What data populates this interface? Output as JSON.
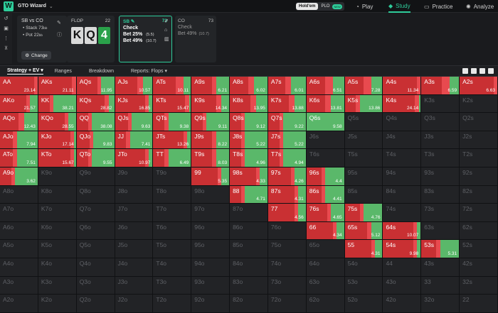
{
  "app": {
    "name": "GTO Wizard"
  },
  "game_toggle": {
    "holdem": "Hold'em",
    "plo": "PLO",
    "new_badge": "NEW"
  },
  "nav": [
    {
      "label": "Play",
      "icon": "play-icon"
    },
    {
      "label": "Study",
      "icon": "study-icon"
    },
    {
      "label": "Practice",
      "icon": "practice-icon"
    },
    {
      "label": "Analyze",
      "icon": "analyze-icon"
    }
  ],
  "spot": {
    "title": "SB vs CO",
    "stack": "• Stack 73",
    "stack_unit": "bb",
    "pot": "• Pot 22",
    "pot_unit": "bb",
    "change": "Change"
  },
  "flop": {
    "label": "FLOP",
    "pot": "22",
    "cards": [
      "K",
      "Q",
      "4"
    ]
  },
  "sb": {
    "label": "SB",
    "pot": "73",
    "actions": [
      {
        "name": "Check",
        "size": ""
      },
      {
        "name": "Bet 25%",
        "size": "(5.5)"
      },
      {
        "name": "Bet 49%",
        "size": "(10.7)"
      }
    ]
  },
  "co": {
    "label": "CO",
    "pot": "73",
    "actions": [
      {
        "name": "Check",
        "size": ""
      },
      {
        "name": "Bet 49%",
        "size": "(10.7)"
      }
    ]
  },
  "tabs": [
    "Strategy + EV",
    "Ranges",
    "Breakdown",
    "Reports: Flops"
  ],
  "colors": {
    "bet_big": "#c93033",
    "bet_small": "#e84a4f",
    "check": "#5ab86a"
  },
  "cells": [
    [
      "AA",
      "23.14",
      0.9,
      0.1,
      0.0
    ],
    [
      "AKs",
      "21.11",
      0.9,
      0.1,
      0.0
    ],
    [
      "AQs",
      "11.95",
      0.55,
      0.1,
      0.35
    ],
    [
      "AJs",
      "10.57",
      0.6,
      0.15,
      0.25
    ],
    [
      "ATs",
      "10.11",
      0.6,
      0.2,
      0.2
    ],
    [
      "A9s",
      "6.21",
      0.55,
      0.1,
      0.35
    ],
    [
      "A8s",
      "6.02",
      0.5,
      0.15,
      0.35
    ],
    [
      "A7s",
      "6.01",
      0.45,
      0.15,
      0.4
    ],
    [
      "A6s",
      "6.51",
      0.5,
      0.2,
      0.3
    ],
    [
      "A5s",
      "7.28",
      0.5,
      0.2,
      0.3
    ],
    [
      "A4s",
      "11.34",
      0.9,
      0.1,
      0.0
    ],
    [
      "A3s",
      "6.59",
      0.55,
      0.2,
      0.25
    ],
    [
      "A2s",
      "6.63",
      0.9,
      0.1,
      0.0
    ],
    [
      "AKo",
      "21.57",
      0.7,
      0.1,
      0.2
    ],
    [
      "KK",
      "38.21",
      0.3,
      0.1,
      0.6
    ],
    [
      "KQs",
      "28.82",
      0.75,
      0.1,
      0.15
    ],
    [
      "KJs",
      "16.85",
      0.8,
      0.1,
      0.1
    ],
    [
      "KTs",
      "15.47",
      0.85,
      0.1,
      0.05
    ],
    [
      "K9s",
      "14.34",
      0.65,
      0.15,
      0.2
    ],
    [
      "K8s",
      "13.95",
      0.55,
      0.15,
      0.3
    ],
    [
      "K7s",
      "13.88",
      0.55,
      0.15,
      0.3
    ],
    [
      "K6s",
      "13.81",
      0.5,
      0.15,
      0.35
    ],
    [
      "K5s",
      "13.86",
      0.3,
      0.1,
      0.6
    ],
    [
      "K4s",
      "24.14",
      0.85,
      0.1,
      0.05
    ],
    [
      "K3s",
      "",
      0,
      0,
      0
    ],
    [
      "K2s",
      "",
      0,
      0,
      0
    ],
    [
      "AQo",
      "12.43",
      0.5,
      0.15,
      0.35
    ],
    [
      "KQo",
      "28.55",
      0.7,
      0.1,
      0.2
    ],
    [
      "QQ",
      "38.08",
      0.3,
      0.1,
      0.6
    ],
    [
      "QJs",
      "9.63",
      0.35,
      0.1,
      0.55
    ],
    [
      "QTs",
      "9.38",
      0.3,
      0.1,
      0.6
    ],
    [
      "Q9s",
      "9.11",
      0.3,
      0.1,
      0.6
    ],
    [
      "Q8s",
      "9.12",
      0.3,
      0.1,
      0.6
    ],
    [
      "Q7s",
      "9.22",
      0.3,
      0.1,
      0.6
    ],
    [
      "Q6s",
      "9.58",
      0.0,
      0.0,
      1.0
    ],
    [
      "Q5s",
      "",
      0,
      0,
      0
    ],
    [
      "Q4s",
      "",
      0,
      0,
      0
    ],
    [
      "Q3s",
      "",
      0,
      0,
      0
    ],
    [
      "Q2s",
      "",
      0,
      0,
      0
    ],
    [
      "AJo",
      "7.94",
      0.35,
      0.1,
      0.55
    ],
    [
      "KJo",
      "17.14",
      0.85,
      0.1,
      0.05
    ],
    [
      "QJo",
      "9.83",
      0.35,
      0.1,
      0.55
    ],
    [
      "JJ",
      "7.41",
      0.3,
      0.1,
      0.6
    ],
    [
      "JTs",
      "13.26",
      0.8,
      0.1,
      0.1
    ],
    [
      "J9s",
      "8.22",
      0.55,
      0.1,
      0.35
    ],
    [
      "J8s",
      "5.22",
      0.3,
      0.1,
      0.6
    ],
    [
      "J7s",
      "5.22",
      0.3,
      0.1,
      0.6
    ],
    [
      "J6s",
      "",
      0,
      0,
      0
    ],
    [
      "J5s",
      "",
      0,
      0,
      0
    ],
    [
      "J4s",
      "",
      0,
      0,
      0
    ],
    [
      "J3s",
      "",
      0,
      0,
      0
    ],
    [
      "J2s",
      "",
      0,
      0,
      0
    ],
    [
      "ATo",
      "7.51",
      0.35,
      0.1,
      0.55
    ],
    [
      "KTo",
      "15.67",
      0.85,
      0.1,
      0.05
    ],
    [
      "QTo",
      "9.55",
      0.3,
      0.1,
      0.6
    ],
    [
      "JTo",
      "10.97",
      0.8,
      0.1,
      0.1
    ],
    [
      "TT",
      "6.49",
      0.3,
      0.1,
      0.6
    ],
    [
      "T9s",
      "8.03",
      0.55,
      0.1,
      0.35
    ],
    [
      "T8s",
      "4.96",
      0.3,
      0.1,
      0.6
    ],
    [
      "T7s",
      "4.94",
      0.3,
      0.1,
      0.6
    ],
    [
      "T6s",
      "",
      0,
      0,
      0
    ],
    [
      "T5s",
      "",
      0,
      0,
      0
    ],
    [
      "T4s",
      "",
      0,
      0,
      0
    ],
    [
      "T3s",
      "",
      0,
      0,
      0
    ],
    [
      "T2s",
      "",
      0,
      0,
      0
    ],
    [
      "A9o",
      "3.62",
      0.3,
      0.1,
      0.6
    ],
    [
      "K9o",
      "",
      0,
      0,
      0
    ],
    [
      "Q9o",
      "",
      0,
      0,
      0
    ],
    [
      "J9o",
      "",
      0,
      0,
      0
    ],
    [
      "T9o",
      "",
      0,
      0,
      0
    ],
    [
      "99",
      "5.35",
      0.7,
      0.1,
      0.2
    ],
    [
      "98s",
      "4.33",
      0.7,
      0.1,
      0.2
    ],
    [
      "97s",
      "4.26",
      0.6,
      0.1,
      0.3
    ],
    [
      "96s",
      "4.4",
      0.4,
      0.1,
      0.5
    ],
    [
      "95s",
      "",
      0,
      0,
      0
    ],
    [
      "94s",
      "",
      0,
      0,
      0
    ],
    [
      "93s",
      "",
      0,
      0,
      0
    ],
    [
      "92s",
      "",
      0,
      0,
      0
    ],
    [
      "A8o",
      "",
      0,
      0,
      0
    ],
    [
      "K8o",
      "",
      0,
      0,
      0
    ],
    [
      "Q8o",
      "",
      0,
      0,
      0
    ],
    [
      "J8o",
      "",
      0,
      0,
      0
    ],
    [
      "T8o",
      "",
      0,
      0,
      0
    ],
    [
      "98o",
      "",
      0,
      0,
      0
    ],
    [
      "88",
      "4.71",
      0.3,
      0.1,
      0.6
    ],
    [
      "87s",
      "4.31",
      0.7,
      0.1,
      0.2
    ],
    [
      "86s",
      "4.41",
      0.4,
      0.1,
      0.5
    ],
    [
      "85s",
      "",
      0,
      0,
      0
    ],
    [
      "84s",
      "",
      0,
      0,
      0
    ],
    [
      "83s",
      "",
      0,
      0,
      0
    ],
    [
      "82s",
      "",
      0,
      0,
      0
    ],
    [
      "A7o",
      "",
      0,
      0,
      0
    ],
    [
      "K7o",
      "",
      0,
      0,
      0
    ],
    [
      "Q7o",
      "",
      0,
      0,
      0
    ],
    [
      "J7o",
      "",
      0,
      0,
      0
    ],
    [
      "T7o",
      "",
      0,
      0,
      0
    ],
    [
      "97o",
      "",
      0,
      0,
      0
    ],
    [
      "87o",
      "",
      0,
      0,
      0
    ],
    [
      "77",
      "4.56",
      0.7,
      0.1,
      0.2
    ],
    [
      "76s",
      "4.65",
      0.55,
      0.1,
      0.35
    ],
    [
      "75s",
      "4.76",
      0.4,
      0.1,
      0.5
    ],
    [
      "74s",
      "",
      0,
      0,
      0
    ],
    [
      "73s",
      "",
      0,
      0,
      0
    ],
    [
      "72s",
      "",
      0,
      0,
      0
    ],
    [
      "A6o",
      "",
      0,
      0,
      0
    ],
    [
      "K6o",
      "",
      0,
      0,
      0
    ],
    [
      "Q6o",
      "",
      0,
      0,
      0
    ],
    [
      "J6o",
      "",
      0,
      0,
      0
    ],
    [
      "T6o",
      "",
      0,
      0,
      0
    ],
    [
      "96o",
      "",
      0,
      0,
      0
    ],
    [
      "86o",
      "",
      0,
      0,
      0
    ],
    [
      "76o",
      "",
      0,
      0,
      0
    ],
    [
      "66",
      "4.34",
      0.7,
      0.1,
      0.2
    ],
    [
      "65s",
      "5.12",
      0.6,
      0.1,
      0.3
    ],
    [
      "64s",
      "10.07",
      0.8,
      0.1,
      0.1
    ],
    [
      "63s",
      "",
      0,
      0,
      0
    ],
    [
      "62s",
      "",
      0,
      0,
      0
    ],
    [
      "A5o",
      "",
      0,
      0,
      0
    ],
    [
      "K5o",
      "",
      0,
      0,
      0
    ],
    [
      "Q5o",
      "",
      0,
      0,
      0
    ],
    [
      "J5o",
      "",
      0,
      0,
      0
    ],
    [
      "T5o",
      "",
      0,
      0,
      0
    ],
    [
      "95o",
      "",
      0,
      0,
      0
    ],
    [
      "85o",
      "",
      0,
      0,
      0
    ],
    [
      "75o",
      "",
      0,
      0,
      0
    ],
    [
      "65o",
      "",
      0,
      0,
      0
    ],
    [
      "55",
      "4.31",
      0.7,
      0.1,
      0.2
    ],
    [
      "54s",
      "9.98",
      0.8,
      0.1,
      0.1
    ],
    [
      "53s",
      "5.31",
      0.4,
      0.1,
      0.5
    ],
    [
      "52s",
      "",
      0,
      0,
      0
    ],
    [
      "A4o",
      "",
      0,
      0,
      0
    ],
    [
      "K4o",
      "",
      0,
      0,
      0
    ],
    [
      "Q4o",
      "",
      0,
      0,
      0
    ],
    [
      "J4o",
      "",
      0,
      0,
      0
    ],
    [
      "T4o",
      "",
      0,
      0,
      0
    ],
    [
      "94o",
      "",
      0,
      0,
      0
    ],
    [
      "84o",
      "",
      0,
      0,
      0
    ],
    [
      "74o",
      "",
      0,
      0,
      0
    ],
    [
      "64o",
      "",
      0,
      0,
      0
    ],
    [
      "54o",
      "",
      0,
      0,
      0
    ],
    [
      "44",
      "",
      0,
      0,
      0
    ],
    [
      "43s",
      "",
      0,
      0,
      0
    ],
    [
      "42s",
      "",
      0,
      0,
      0
    ],
    [
      "A3o",
      "",
      0,
      0,
      0
    ],
    [
      "K3o",
      "",
      0,
      0,
      0
    ],
    [
      "Q3o",
      "",
      0,
      0,
      0
    ],
    [
      "J3o",
      "",
      0,
      0,
      0
    ],
    [
      "T3o",
      "",
      0,
      0,
      0
    ],
    [
      "93o",
      "",
      0,
      0,
      0
    ],
    [
      "83o",
      "",
      0,
      0,
      0
    ],
    [
      "73o",
      "",
      0,
      0,
      0
    ],
    [
      "63o",
      "",
      0,
      0,
      0
    ],
    [
      "53o",
      "",
      0,
      0,
      0
    ],
    [
      "43o",
      "",
      0,
      0,
      0
    ],
    [
      "33",
      "",
      0,
      0,
      0
    ],
    [
      "32s",
      "",
      0,
      0,
      0
    ],
    [
      "A2o",
      "",
      0,
      0,
      0
    ],
    [
      "K2o",
      "",
      0,
      0,
      0
    ],
    [
      "Q2o",
      "",
      0,
      0,
      0
    ],
    [
      "J2o",
      "",
      0,
      0,
      0
    ],
    [
      "T2o",
      "",
      0,
      0,
      0
    ],
    [
      "92o",
      "",
      0,
      0,
      0
    ],
    [
      "82o",
      "",
      0,
      0,
      0
    ],
    [
      "72o",
      "",
      0,
      0,
      0
    ],
    [
      "62o",
      "",
      0,
      0,
      0
    ],
    [
      "52o",
      "",
      0,
      0,
      0
    ],
    [
      "42o",
      "",
      0,
      0,
      0
    ],
    [
      "32o",
      "",
      0,
      0,
      0
    ],
    [
      "22",
      "",
      0,
      0,
      0
    ]
  ]
}
